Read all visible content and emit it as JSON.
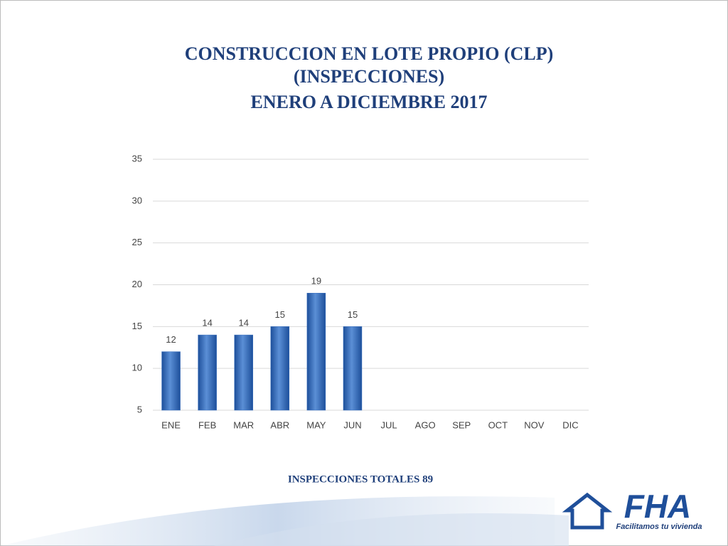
{
  "chart_data": {
    "type": "bar",
    "title": [
      "CONSTRUCCION EN LOTE PROPIO (CLP)",
      "(INSPECCIONES)",
      "ENERO A DICIEMBRE 2017"
    ],
    "categories": [
      "ENE",
      "FEB",
      "MAR",
      "ABR",
      "MAY",
      "JUN",
      "JUL",
      "AGO",
      "SEP",
      "OCT",
      "NOV",
      "DIC"
    ],
    "values": [
      12,
      14,
      14,
      15,
      19,
      15,
      null,
      null,
      null,
      null,
      null,
      null
    ],
    "color": "#3a70c0",
    "ylim": [
      5,
      35
    ],
    "yticks": [
      5,
      10,
      15,
      20,
      25,
      30,
      35
    ],
    "grid": true,
    "annotation": "INSPECCIONES TOTALES 89",
    "logo": {
      "text": "FHA",
      "tagline": "Facilitamos tu vivienda"
    }
  }
}
